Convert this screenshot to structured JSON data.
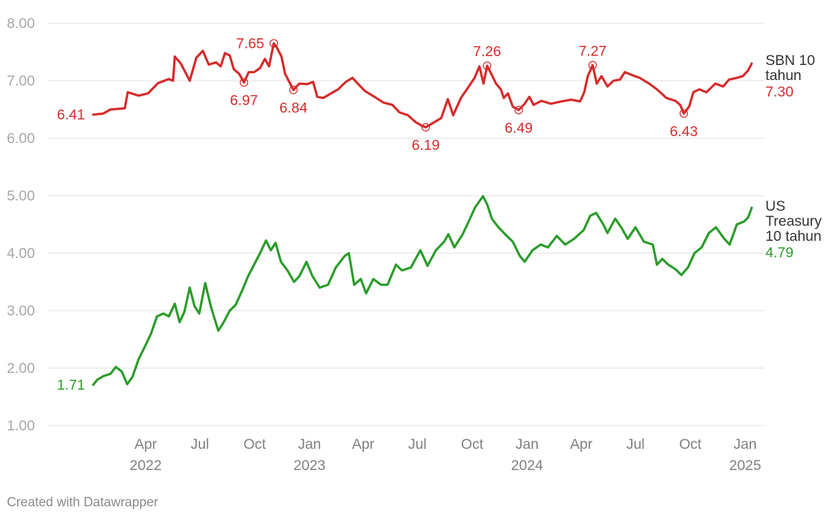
{
  "chart_data": {
    "type": "line",
    "title": "",
    "xlabel": "",
    "ylabel": "",
    "ylim": [
      1.0,
      8.0
    ],
    "y_ticks": [
      "8.00",
      "7.00",
      "6.00",
      "5.00",
      "4.00",
      "3.00",
      "2.00",
      "1.00"
    ],
    "y_tick_values": [
      8,
      7,
      6,
      5,
      4,
      3,
      2,
      1
    ],
    "x_range": [
      "2022-01-01",
      "2025-01-15"
    ],
    "x_ticks": [
      {
        "date": "2022-04-01",
        "label": "Apr",
        "year": "2022"
      },
      {
        "date": "2022-07-01",
        "label": "Jul",
        "year": ""
      },
      {
        "date": "2022-10-01",
        "label": "Oct",
        "year": ""
      },
      {
        "date": "2023-01-01",
        "label": "Jan",
        "year": "2023"
      },
      {
        "date": "2023-04-01",
        "label": "Apr",
        "year": ""
      },
      {
        "date": "2023-07-01",
        "label": "Jul",
        "year": ""
      },
      {
        "date": "2023-10-01",
        "label": "Oct",
        "year": ""
      },
      {
        "date": "2024-01-01",
        "label": "Jan",
        "year": "2024"
      },
      {
        "date": "2024-04-01",
        "label": "Apr",
        "year": ""
      },
      {
        "date": "2024-07-01",
        "label": "Jul",
        "year": ""
      },
      {
        "date": "2024-10-01",
        "label": "Oct",
        "year": ""
      },
      {
        "date": "2025-01-01",
        "label": "Jan",
        "year": "2025"
      }
    ],
    "grid": true,
    "series": [
      {
        "name": "SBN 10 tahun",
        "name_lines": [
          "SBN 10",
          "tahun"
        ],
        "color": "#d62b2b",
        "last_label": "7.30",
        "first_label": "6.41",
        "points": [
          [
            "2022-01-03",
            6.41
          ],
          [
            "2022-01-20",
            6.43
          ],
          [
            "2022-02-01",
            6.5
          ],
          [
            "2022-02-25",
            6.52
          ],
          [
            "2022-03-02",
            6.8
          ],
          [
            "2022-03-20",
            6.74
          ],
          [
            "2022-04-05",
            6.78
          ],
          [
            "2022-04-22",
            6.96
          ],
          [
            "2022-05-10",
            7.03
          ],
          [
            "2022-05-17",
            7.0
          ],
          [
            "2022-05-20",
            7.42
          ],
          [
            "2022-05-30",
            7.3
          ],
          [
            "2022-06-08",
            7.12
          ],
          [
            "2022-06-14",
            7.0
          ],
          [
            "2022-06-25",
            7.4
          ],
          [
            "2022-07-06",
            7.52
          ],
          [
            "2022-07-16",
            7.28
          ],
          [
            "2022-07-28",
            7.32
          ],
          [
            "2022-08-05",
            7.25
          ],
          [
            "2022-08-12",
            7.48
          ],
          [
            "2022-08-20",
            7.44
          ],
          [
            "2022-08-27",
            7.2
          ],
          [
            "2022-09-05",
            7.12
          ],
          [
            "2022-09-13",
            6.97
          ],
          [
            "2022-09-21",
            7.15
          ],
          [
            "2022-09-30",
            7.15
          ],
          [
            "2022-10-10",
            7.22
          ],
          [
            "2022-10-18",
            7.38
          ],
          [
            "2022-10-25",
            7.25
          ],
          [
            "2022-11-02",
            7.65
          ],
          [
            "2022-11-07",
            7.58
          ],
          [
            "2022-11-15",
            7.42
          ],
          [
            "2022-11-21",
            7.12
          ],
          [
            "2022-11-28",
            6.98
          ],
          [
            "2022-12-05",
            6.84
          ],
          [
            "2022-12-15",
            6.95
          ],
          [
            "2022-12-28",
            6.94
          ],
          [
            "2023-01-07",
            6.98
          ],
          [
            "2023-01-14",
            6.72
          ],
          [
            "2023-01-24",
            6.7
          ],
          [
            "2023-02-06",
            6.78
          ],
          [
            "2023-02-18",
            6.85
          ],
          [
            "2023-03-03",
            6.98
          ],
          [
            "2023-03-14",
            7.05
          ],
          [
            "2023-03-23",
            6.95
          ],
          [
            "2023-04-04",
            6.82
          ],
          [
            "2023-04-20",
            6.72
          ],
          [
            "2023-05-05",
            6.62
          ],
          [
            "2023-05-20",
            6.58
          ],
          [
            "2023-06-01",
            6.45
          ],
          [
            "2023-06-15",
            6.4
          ],
          [
            "2023-06-28",
            6.28
          ],
          [
            "2023-07-08",
            6.22
          ],
          [
            "2023-07-15",
            6.19
          ],
          [
            "2023-07-28",
            6.27
          ],
          [
            "2023-08-10",
            6.35
          ],
          [
            "2023-08-21",
            6.68
          ],
          [
            "2023-08-30",
            6.4
          ],
          [
            "2023-09-12",
            6.7
          ],
          [
            "2023-09-24",
            6.88
          ],
          [
            "2023-10-05",
            7.05
          ],
          [
            "2023-10-13",
            7.25
          ],
          [
            "2023-10-20",
            6.95
          ],
          [
            "2023-10-26",
            7.26
          ],
          [
            "2023-11-02",
            7.12
          ],
          [
            "2023-11-10",
            6.95
          ],
          [
            "2023-11-18",
            6.85
          ],
          [
            "2023-11-23",
            6.7
          ],
          [
            "2023-11-30",
            6.78
          ],
          [
            "2023-12-08",
            6.55
          ],
          [
            "2023-12-18",
            6.49
          ],
          [
            "2023-12-28",
            6.6
          ],
          [
            "2024-01-05",
            6.72
          ],
          [
            "2024-01-12",
            6.58
          ],
          [
            "2024-01-25",
            6.65
          ],
          [
            "2024-02-10",
            6.6
          ],
          [
            "2024-02-28",
            6.64
          ],
          [
            "2024-03-15",
            6.67
          ],
          [
            "2024-03-30",
            6.64
          ],
          [
            "2024-04-06",
            6.8
          ],
          [
            "2024-04-12",
            7.08
          ],
          [
            "2024-04-20",
            7.27
          ],
          [
            "2024-04-27",
            6.95
          ],
          [
            "2024-05-05",
            7.08
          ],
          [
            "2024-05-15",
            6.9
          ],
          [
            "2024-05-25",
            7.0
          ],
          [
            "2024-06-05",
            7.02
          ],
          [
            "2024-06-13",
            7.15
          ],
          [
            "2024-06-25",
            7.1
          ],
          [
            "2024-07-08",
            7.05
          ],
          [
            "2024-07-24",
            6.95
          ],
          [
            "2024-08-06",
            6.85
          ],
          [
            "2024-08-22",
            6.7
          ],
          [
            "2024-09-06",
            6.65
          ],
          [
            "2024-09-14",
            6.58
          ],
          [
            "2024-09-20",
            6.43
          ],
          [
            "2024-09-29",
            6.55
          ],
          [
            "2024-10-06",
            6.8
          ],
          [
            "2024-10-16",
            6.85
          ],
          [
            "2024-10-28",
            6.8
          ],
          [
            "2024-11-12",
            6.95
          ],
          [
            "2024-11-25",
            6.9
          ],
          [
            "2024-12-05",
            7.02
          ],
          [
            "2024-12-18",
            7.05
          ],
          [
            "2024-12-28",
            7.08
          ],
          [
            "2025-01-06",
            7.18
          ],
          [
            "2025-01-12",
            7.3
          ]
        ],
        "annotations": [
          {
            "date": "2022-09-13",
            "value": 6.97,
            "label": "6.97",
            "pos": "below"
          },
          {
            "date": "2022-11-02",
            "value": 7.65,
            "label": "7.65",
            "pos": "left"
          },
          {
            "date": "2022-12-05",
            "value": 6.84,
            "label": "6.84",
            "pos": "below"
          },
          {
            "date": "2023-07-15",
            "value": 6.19,
            "label": "6.19",
            "pos": "below"
          },
          {
            "date": "2023-10-26",
            "value": 7.26,
            "label": "7.26",
            "pos": "above"
          },
          {
            "date": "2023-12-18",
            "value": 6.49,
            "label": "6.49",
            "pos": "below"
          },
          {
            "date": "2024-04-20",
            "value": 7.27,
            "label": "7.27",
            "pos": "above"
          },
          {
            "date": "2024-09-20",
            "value": 6.43,
            "label": "6.43",
            "pos": "below"
          }
        ]
      },
      {
        "name": "US Treasury 10 tahun",
        "name_lines": [
          "US",
          "Treasury",
          "10 tahun"
        ],
        "color": "#2a9c2a",
        "last_label": "4.79",
        "first_label": "1.71",
        "points": [
          [
            "2022-01-03",
            1.71
          ],
          [
            "2022-01-10",
            1.8
          ],
          [
            "2022-01-20",
            1.86
          ],
          [
            "2022-02-01",
            1.9
          ],
          [
            "2022-02-10",
            2.02
          ],
          [
            "2022-02-20",
            1.94
          ],
          [
            "2022-03-01",
            1.72
          ],
          [
            "2022-03-10",
            1.85
          ],
          [
            "2022-03-20",
            2.15
          ],
          [
            "2022-04-01",
            2.4
          ],
          [
            "2022-04-10",
            2.6
          ],
          [
            "2022-04-20",
            2.9
          ],
          [
            "2022-05-01",
            2.95
          ],
          [
            "2022-05-10",
            2.9
          ],
          [
            "2022-05-20",
            3.12
          ],
          [
            "2022-05-28",
            2.8
          ],
          [
            "2022-06-05",
            2.98
          ],
          [
            "2022-06-14",
            3.4
          ],
          [
            "2022-06-22",
            3.08
          ],
          [
            "2022-06-30",
            2.95
          ],
          [
            "2022-07-10",
            3.48
          ],
          [
            "2022-07-20",
            3.05
          ],
          [
            "2022-08-01",
            2.65
          ],
          [
            "2022-08-10",
            2.8
          ],
          [
            "2022-08-20",
            3.0
          ],
          [
            "2022-08-30",
            3.1
          ],
          [
            "2022-09-10",
            3.35
          ],
          [
            "2022-09-20",
            3.6
          ],
          [
            "2022-09-30",
            3.8
          ],
          [
            "2022-10-10",
            4.0
          ],
          [
            "2022-10-20",
            4.22
          ],
          [
            "2022-10-28",
            4.05
          ],
          [
            "2022-11-05",
            4.18
          ],
          [
            "2022-11-14",
            3.85
          ],
          [
            "2022-11-25",
            3.7
          ],
          [
            "2022-12-06",
            3.5
          ],
          [
            "2022-12-15",
            3.6
          ],
          [
            "2022-12-27",
            3.85
          ],
          [
            "2023-01-06",
            3.6
          ],
          [
            "2023-01-18",
            3.4
          ],
          [
            "2023-02-01",
            3.45
          ],
          [
            "2023-02-14",
            3.75
          ],
          [
            "2023-03-01",
            3.95
          ],
          [
            "2023-03-08",
            4.0
          ],
          [
            "2023-03-17",
            3.45
          ],
          [
            "2023-03-28",
            3.55
          ],
          [
            "2023-04-06",
            3.3
          ],
          [
            "2023-04-18",
            3.55
          ],
          [
            "2023-05-01",
            3.45
          ],
          [
            "2023-05-12",
            3.45
          ],
          [
            "2023-05-26",
            3.8
          ],
          [
            "2023-06-05",
            3.7
          ],
          [
            "2023-06-20",
            3.75
          ],
          [
            "2023-07-06",
            4.05
          ],
          [
            "2023-07-18",
            3.78
          ],
          [
            "2023-08-01",
            4.05
          ],
          [
            "2023-08-15",
            4.2
          ],
          [
            "2023-08-22",
            4.33
          ],
          [
            "2023-09-01",
            4.1
          ],
          [
            "2023-09-15",
            4.33
          ],
          [
            "2023-09-25",
            4.55
          ],
          [
            "2023-10-06",
            4.8
          ],
          [
            "2023-10-19",
            4.99
          ],
          [
            "2023-10-26",
            4.85
          ],
          [
            "2023-11-03",
            4.6
          ],
          [
            "2023-11-14",
            4.45
          ],
          [
            "2023-11-28",
            4.3
          ],
          [
            "2023-12-08",
            4.2
          ],
          [
            "2023-12-20",
            3.95
          ],
          [
            "2023-12-28",
            3.85
          ],
          [
            "2024-01-10",
            4.05
          ],
          [
            "2024-01-24",
            4.15
          ],
          [
            "2024-02-05",
            4.1
          ],
          [
            "2024-02-20",
            4.3
          ],
          [
            "2024-03-05",
            4.15
          ],
          [
            "2024-03-20",
            4.25
          ],
          [
            "2024-04-05",
            4.4
          ],
          [
            "2024-04-16",
            4.65
          ],
          [
            "2024-04-26",
            4.7
          ],
          [
            "2024-05-08",
            4.5
          ],
          [
            "2024-05-15",
            4.35
          ],
          [
            "2024-05-28",
            4.6
          ],
          [
            "2024-06-07",
            4.45
          ],
          [
            "2024-06-18",
            4.25
          ],
          [
            "2024-07-01",
            4.45
          ],
          [
            "2024-07-15",
            4.2
          ],
          [
            "2024-07-30",
            4.15
          ],
          [
            "2024-08-06",
            3.8
          ],
          [
            "2024-08-15",
            3.9
          ],
          [
            "2024-08-25",
            3.8
          ],
          [
            "2024-09-06",
            3.72
          ],
          [
            "2024-09-16",
            3.62
          ],
          [
            "2024-09-27",
            3.75
          ],
          [
            "2024-10-08",
            4.0
          ],
          [
            "2024-10-20",
            4.1
          ],
          [
            "2024-11-01",
            4.35
          ],
          [
            "2024-11-13",
            4.45
          ],
          [
            "2024-11-27",
            4.25
          ],
          [
            "2024-12-06",
            4.15
          ],
          [
            "2024-12-18",
            4.5
          ],
          [
            "2024-12-30",
            4.55
          ],
          [
            "2025-01-06",
            4.62
          ],
          [
            "2025-01-12",
            4.79
          ]
        ],
        "annotations": []
      }
    ]
  },
  "footer": {
    "credit": "Created with Datawrapper"
  }
}
